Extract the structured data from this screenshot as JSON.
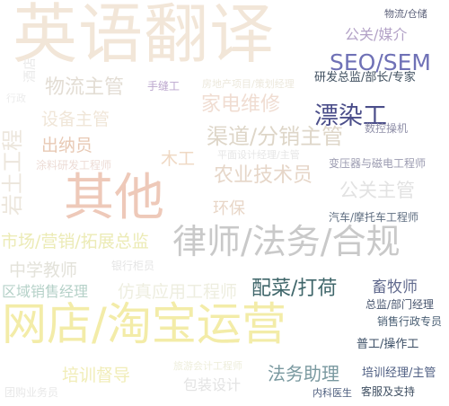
{
  "word_cloud": {
    "words": [
      {
        "text": "英语翻译"
      },
      {
        "text": "其他"
      },
      {
        "text": "网店/淘宝运营"
      },
      {
        "text": "律师/法务/合规"
      },
      {
        "text": "漂染工"
      },
      {
        "text": "SEO/SEM"
      },
      {
        "text": "渠道/分销主管"
      },
      {
        "text": "配菜/打荷"
      },
      {
        "text": "法务助理"
      },
      {
        "text": "物流主管"
      },
      {
        "text": "家电维修"
      },
      {
        "text": "农业技术员"
      },
      {
        "text": "公关主管"
      },
      {
        "text": "设备主管"
      },
      {
        "text": "出纳员"
      },
      {
        "text": "木工"
      },
      {
        "text": "市场/营销/拓展总监"
      },
      {
        "text": "中学教师"
      },
      {
        "text": "区域销售经理"
      },
      {
        "text": "仿真应用工程师"
      },
      {
        "text": "培训督导"
      },
      {
        "text": "环保"
      },
      {
        "text": "畜牧师"
      },
      {
        "text": "公关/媒介"
      },
      {
        "text": "包装设计"
      },
      {
        "text": "研发总监/部长/专家"
      },
      {
        "text": "普工/操作工"
      },
      {
        "text": "培训经理/主管"
      },
      {
        "text": "总监/部门经理"
      },
      {
        "text": "销售行政专员"
      },
      {
        "text": "汽车/摩托车工程师"
      },
      {
        "text": "变压器与磁电工程师"
      },
      {
        "text": "数控操机"
      },
      {
        "text": "客服及支持"
      },
      {
        "text": "内科医生"
      },
      {
        "text": "物流/仓储"
      },
      {
        "text": "手缝工"
      },
      {
        "text": "房地产项目/策划经理"
      },
      {
        "text": "平面设计经理/主管"
      },
      {
        "text": "涂料研发工程师"
      },
      {
        "text": "旅游会计工程师"
      },
      {
        "text": "团购业务员"
      },
      {
        "text": "银行柜员"
      },
      {
        "text": "行政"
      },
      {
        "text": "岩土工程"
      },
      {
        "text": "酒店"
      }
    ]
  }
}
